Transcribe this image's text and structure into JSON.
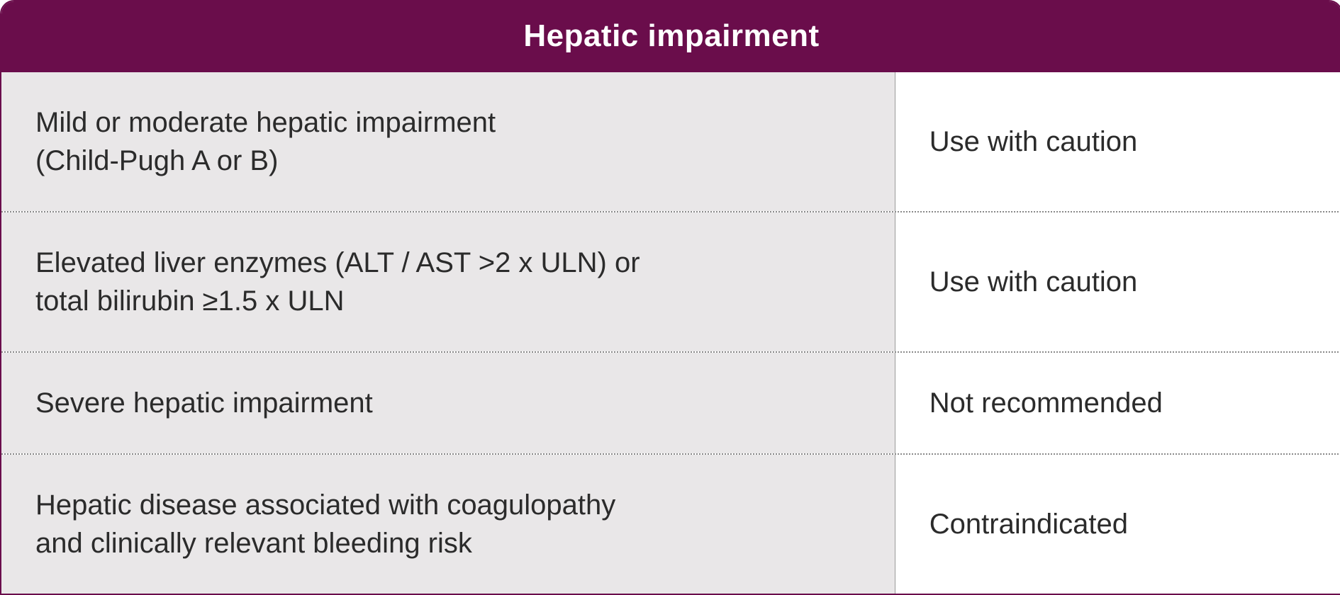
{
  "table": {
    "title": "Hepatic impairment",
    "header_bg": "#6a0d4b",
    "header_text_color": "#ffffff",
    "border_color": "#6a0d4b",
    "left_bg": "#e9e7e8",
    "right_bg": "#ffffff",
    "divider_color": "#8a8a8a",
    "title_fontsize": 44,
    "cell_fontsize": 40,
    "rows": [
      {
        "condition_line1": "Mild or moderate hepatic impairment",
        "condition_line2": "(Child-Pugh A or B)",
        "recommendation": "Use with caution"
      },
      {
        "condition_line1": "Elevated liver enzymes (ALT / AST >2 x ULN) or",
        "condition_line2": "total bilirubin ≥1.5 x ULN",
        "recommendation": "Use with caution"
      },
      {
        "condition_line1": "Severe hepatic impairment",
        "condition_line2": "",
        "recommendation": "Not recommended"
      },
      {
        "condition_line1": "Hepatic disease associated with coagulopathy",
        "condition_line2": "and clinically relevant bleeding risk",
        "recommendation": "Contraindicated"
      }
    ]
  }
}
